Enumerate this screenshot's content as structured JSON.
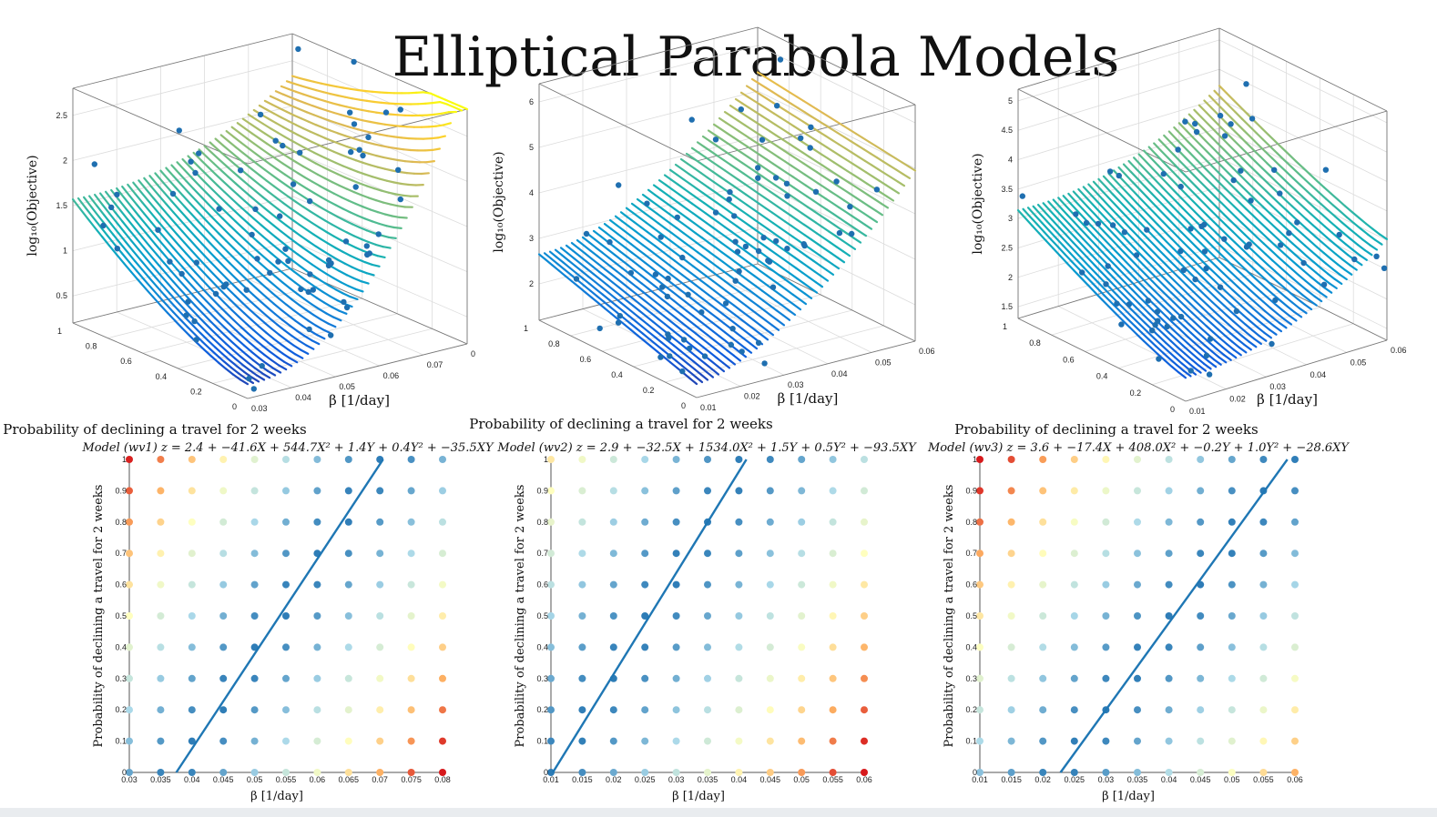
{
  "slide": {
    "title": "Elliptical Parabola Models"
  },
  "colors": {
    "dot3d": "#1f6fb0",
    "fitline": "#1f77b4",
    "axis": "#555555",
    "grid": "#dddddd"
  },
  "surface_plots": [
    {
      "zlabel": "log₁₀(Objective)",
      "xlabel": "β [1/day]",
      "zticks": [
        "0.5",
        "1",
        "1.5",
        "2",
        "2.5"
      ],
      "yticks": [
        "0",
        "0.2",
        "0.4",
        "0.6",
        "0.8",
        "1"
      ],
      "xticks": [
        "0.03",
        "0.04",
        "0.05",
        "0.06",
        "0.07",
        "0"
      ]
    },
    {
      "zlabel": "log₁₀(Objective)",
      "xlabel": "β [1/day]",
      "zticks": [
        "2",
        "3",
        "4",
        "5",
        "6"
      ],
      "yticks": [
        "0",
        "0.2",
        "0.4",
        "0.6",
        "0.8",
        "1"
      ],
      "xticks": [
        "0.01",
        "0.02",
        "0.03",
        "0.04",
        "0.05",
        "0.06"
      ]
    },
    {
      "zlabel": "log₁₀(Objective)",
      "xlabel": "β [1/day]",
      "zticks": [
        "1.5",
        "2",
        "2.5",
        "3",
        "3.5",
        "4",
        "4.5",
        "5"
      ],
      "yticks": [
        "0",
        "0.2",
        "0.4",
        "0.6",
        "0.8",
        "1"
      ],
      "xticks": [
        "0.01",
        "0.02",
        "0.03",
        "0.04",
        "0.05",
        "0.06"
      ]
    }
  ],
  "chart_data": [
    {
      "type": "scatter",
      "title": "Probability of declining a travel for 2 weeks",
      "subtitle": "Model (wv1) z = 2.4 + −41.6X + 544.7X² + 1.4Y + 0.4Y² + −35.5XY",
      "xlabel": "β [1/day]",
      "ylabel": "Probability of declining a travel for 2 weeks",
      "xticks": [
        "0.03",
        "0.035",
        "0.04",
        "0.045",
        "0.05",
        "0.055",
        "0.06",
        "0.065",
        "0.07",
        "0.075",
        "0.08"
      ],
      "yticks": [
        "0",
        "0.1",
        "0.2",
        "0.3",
        "0.4",
        "0.5",
        "0.6",
        "0.7",
        "0.8",
        "0.9",
        "1"
      ],
      "xlim": [
        0.03,
        0.08
      ],
      "ylim": [
        0,
        1
      ],
      "coef": {
        "c": 2.4,
        "x": -41.6,
        "x2": 544.7,
        "y": 1.4,
        "y2": 0.4,
        "xy": -35.5
      },
      "line": {
        "x": [
          0.0375,
          0.0705
        ],
        "y": [
          0,
          1
        ]
      }
    },
    {
      "type": "scatter",
      "title": "Probability of declining a travel for 2 weeks",
      "subtitle": "Model (wv2) z = 2.9 + −32.5X + 1534.0X² + 1.5Y + 0.5Y² + −93.5XY",
      "xlabel": "β [1/day]",
      "ylabel": "Probability of declining a travel for 2 weeks",
      "xticks": [
        "0.01",
        "0.015",
        "0.02",
        "0.025",
        "0.03",
        "0.035",
        "0.04",
        "0.045",
        "0.05",
        "0.055",
        "0.06"
      ],
      "yticks": [
        "0",
        "0.1",
        "0.2",
        "0.3",
        "0.4",
        "0.5",
        "0.6",
        "0.7",
        "0.8",
        "0.9",
        "1"
      ],
      "xlim": [
        0.01,
        0.06
      ],
      "ylim": [
        0,
        1
      ],
      "coef": {
        "c": 2.9,
        "x": -32.5,
        "x2": 1534.0,
        "y": 1.5,
        "y2": 0.5,
        "xy": -93.5
      },
      "line": {
        "x": [
          0.0103,
          0.0412
        ],
        "y": [
          0,
          1
        ]
      }
    },
    {
      "type": "scatter",
      "title": "Probability of declining a travel for 2 weeks",
      "subtitle": "Model (wv3) z = 3.6 + −17.4X + 408.0X² + −0.2Y + 1.0Y² + −28.6XY",
      "xlabel": "β [1/day]",
      "ylabel": "Probability of declining a travel for 2 weeks",
      "xticks": [
        "0.01",
        "0.015",
        "0.02",
        "0.025",
        "0.03",
        "0.035",
        "0.04",
        "0.045",
        "0.05",
        "0.055",
        "0.06"
      ],
      "yticks": [
        "0",
        "0.1",
        "0.2",
        "0.3",
        "0.4",
        "0.5",
        "0.6",
        "0.7",
        "0.8",
        "0.9",
        "1"
      ],
      "xlim": [
        0.01,
        0.06
      ],
      "ylim": [
        0,
        1
      ],
      "coef": {
        "c": 3.6,
        "x": -17.4,
        "x2": 408.0,
        "y": -0.2,
        "y2": 1.0,
        "xy": -28.6
      },
      "line": {
        "x": [
          0.0228,
          0.0588
        ],
        "y": [
          0,
          1
        ]
      }
    }
  ]
}
